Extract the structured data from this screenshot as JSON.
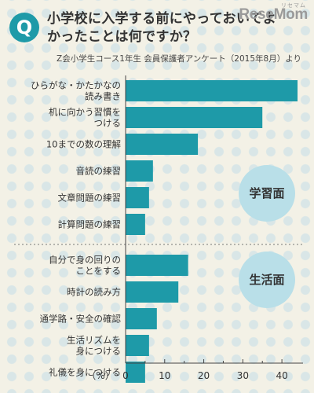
{
  "header": {
    "badge": "Q",
    "title": "小学校に入学する前にやっておいてよかったことは何ですか？",
    "source": "Z会小学生コース1年生 会員保護者アンケート（2015年8月）より",
    "logo": "ReseMom",
    "logo_ruby": "リセマム"
  },
  "colors": {
    "bar": "#1e9aa8",
    "group_circle": "#b9dfe8",
    "axis": "#444444",
    "background": "#f3f1e6"
  },
  "chart_data": {
    "type": "bar",
    "orientation": "horizontal",
    "categories": [
      [
        "ひらがな・かたかなの",
        "読み書き"
      ],
      [
        "机に向かう習慣を",
        "つける"
      ],
      [
        "10までの数の理解"
      ],
      [
        "音読の練習"
      ],
      [
        "文章問題の練習"
      ],
      [
        "計算問題の練習"
      ],
      [
        "自分で身の回りの",
        "ことをする"
      ],
      [
        "時計の読み方"
      ],
      [
        "通学路・安全の確認"
      ],
      [
        "生活リズムを",
        "身につける"
      ],
      [
        "礼儀を身につける"
      ]
    ],
    "values": [
      44,
      35,
      18.5,
      7,
      6,
      5,
      16,
      13.5,
      8,
      6,
      5
    ],
    "xunit": "（%）",
    "xlim": [
      0,
      45
    ],
    "xticks": [
      0,
      10,
      20,
      30,
      40
    ],
    "groups": [
      {
        "name": "学習面",
        "start": 0,
        "end": 5
      },
      {
        "name": "生活面",
        "start": 6,
        "end": 10
      }
    ],
    "grid": false
  }
}
